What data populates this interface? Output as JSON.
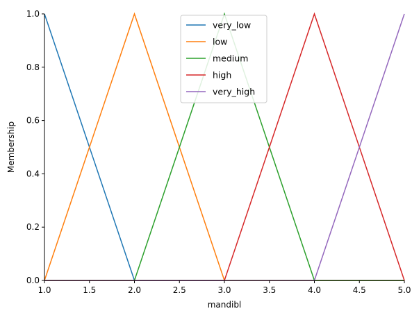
{
  "chart_data": {
    "type": "line",
    "xlabel": "mandibl",
    "ylabel": "Membership",
    "xlim": [
      1.0,
      5.0
    ],
    "ylim": [
      0.0,
      1.0
    ],
    "xticks": [
      "1.0",
      "1.5",
      "2.0",
      "2.5",
      "3.0",
      "3.5",
      "4.0",
      "4.5",
      "5.0"
    ],
    "yticks": [
      "0.0",
      "0.2",
      "0.4",
      "0.6",
      "0.8",
      "1.0"
    ],
    "legend_position": "top-center",
    "grid": false,
    "series": [
      {
        "name": "very_low",
        "color": "#1f77b4",
        "x": [
          1.0,
          2.0,
          5.0
        ],
        "y": [
          1.0,
          0.0,
          0.0
        ]
      },
      {
        "name": "low",
        "color": "#ff7f0e",
        "x": [
          1.0,
          2.0,
          3.0,
          5.0
        ],
        "y": [
          0.0,
          1.0,
          0.0,
          0.0
        ]
      },
      {
        "name": "medium",
        "color": "#2ca02c",
        "x": [
          1.0,
          2.0,
          3.0,
          4.0,
          5.0
        ],
        "y": [
          0.0,
          0.0,
          1.0,
          0.0,
          0.0
        ]
      },
      {
        "name": "high",
        "color": "#d62728",
        "x": [
          1.0,
          3.0,
          4.0,
          5.0
        ],
        "y": [
          0.0,
          0.0,
          1.0,
          0.0
        ]
      },
      {
        "name": "very_high",
        "color": "#9467bd",
        "x": [
          1.0,
          4.0,
          5.0
        ],
        "y": [
          0.0,
          0.0,
          1.0
        ]
      }
    ]
  }
}
